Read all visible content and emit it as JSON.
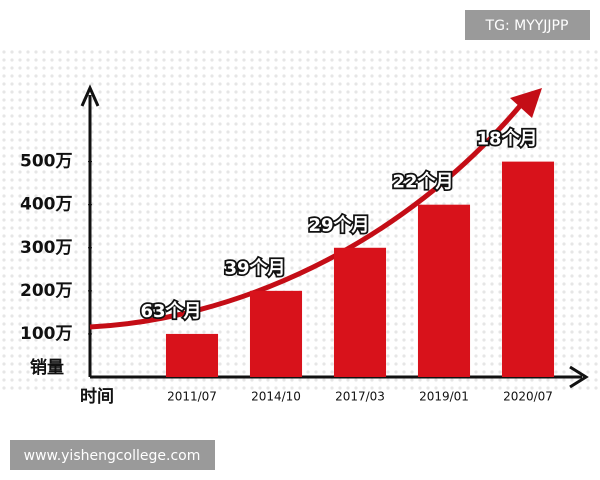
{
  "chart_data": {
    "type": "bar",
    "y_label": "销量",
    "x_label": "时间",
    "categories": [
      "2011/07",
      "2014/10",
      "2017/03",
      "2019/01",
      "2020/07"
    ],
    "values": [
      100,
      200,
      300,
      400,
      500
    ],
    "annotations": [
      "63个月",
      "39个月",
      "29个月",
      "22个月",
      "18个月"
    ],
    "color": "#d8121b",
    "ylim": [
      0,
      650
    ],
    "yticks": [
      {
        "value": 100,
        "label": "100万"
      },
      {
        "value": 200,
        "label": "200万"
      },
      {
        "value": 300,
        "label": "300万"
      },
      {
        "value": 400,
        "label": "400万"
      },
      {
        "value": 500,
        "label": "500万"
      }
    ]
  },
  "watermarks": {
    "top": "TG: MYYJJPP",
    "bottom": "www.yishengcollege.com"
  }
}
